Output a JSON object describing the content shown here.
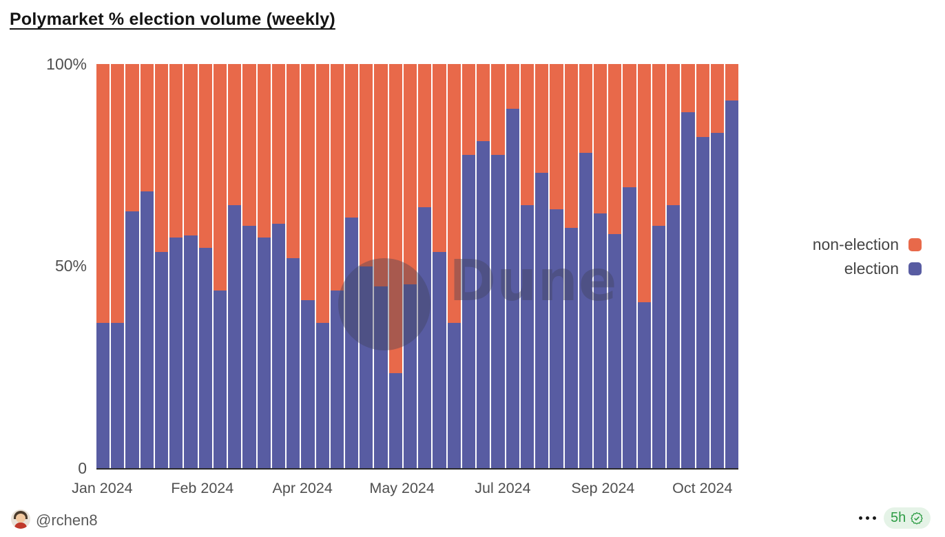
{
  "title": "Polymarket % election volume (weekly)",
  "y_axis_labels": [
    "100%",
    "50%",
    "0"
  ],
  "chart_data": {
    "type": "bar",
    "stacked": true,
    "unit": "percent",
    "ylim": [
      0,
      100
    ],
    "grid": false,
    "legend_position": "right",
    "weeks": 44,
    "series": [
      {
        "name": "election",
        "color": "#585CA2",
        "values": [
          36,
          36,
          63.5,
          68.5,
          53.5,
          57,
          57.5,
          54.5,
          44,
          65,
          60,
          57,
          60.5,
          52,
          41.5,
          36,
          44,
          62,
          50,
          45,
          23.5,
          45.5,
          64.5,
          53.5,
          36,
          77.5,
          81,
          77.5,
          89,
          65,
          73,
          64,
          59.5,
          78,
          63,
          58,
          69.5,
          41,
          60,
          65,
          88,
          82,
          83,
          91
        ]
      },
      {
        "name": "non-election",
        "color": "#E8694A",
        "values": [
          64,
          64,
          36.5,
          31.5,
          46.5,
          43,
          42.5,
          45.5,
          56,
          35,
          40,
          43,
          39.5,
          48,
          58.5,
          64,
          56,
          38,
          50,
          55,
          76.5,
          54.5,
          35.5,
          46.5,
          64,
          22.5,
          19,
          22.5,
          11,
          35,
          27,
          36,
          40.5,
          22,
          37,
          42,
          30.5,
          59,
          40,
          35,
          12,
          18,
          17,
          9
        ]
      }
    ],
    "x_tick_labels": [
      {
        "label": "Jan 2024",
        "pos_pct": 0.9
      },
      {
        "label": "Feb 2024",
        "pos_pct": 16.5
      },
      {
        "label": "Apr 2024",
        "pos_pct": 32.1
      },
      {
        "label": "May 2024",
        "pos_pct": 47.6
      },
      {
        "label": "Jul 2024",
        "pos_pct": 63.3
      },
      {
        "label": "Sep 2024",
        "pos_pct": 78.9
      },
      {
        "label": "Oct 2024",
        "pos_pct": 94.4
      }
    ],
    "legend": [
      {
        "label": "non-election",
        "color": "#E8694A"
      },
      {
        "label": "election",
        "color": "#585CA2"
      }
    ]
  },
  "watermark": {
    "text": "Dune"
  },
  "footer": {
    "username": "@rchen8",
    "badge": {
      "time": "5h",
      "color": "#2D9C44",
      "background": "#E5F3E7"
    }
  }
}
